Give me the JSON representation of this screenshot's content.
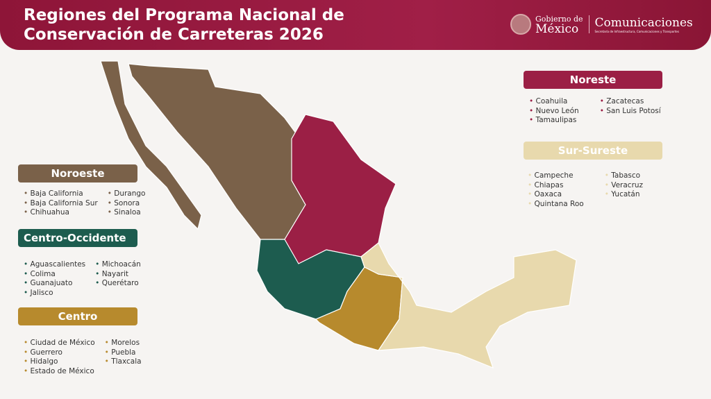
{
  "header": {
    "title_line1": "Regiones del Programa Nacional de",
    "title_line2": "Conservación de Carreteras 2026",
    "logo_gob_line1": "Gobierno de",
    "logo_gob_line2": "México",
    "logo_dept": "Comunicaciones",
    "logo_dept_sub": "Secretaría de Infraestructura, Comunicaciones y Transportes"
  },
  "regions": [
    {
      "name": "Noroeste",
      "color": "#7a6149",
      "states": [
        "Baja California",
        "Baja California Sur",
        "Chihuahua",
        "Durango",
        "Sonora",
        "Sinaloa"
      ]
    },
    {
      "name": "Centro-Occidente",
      "color": "#1d5c4f",
      "states": [
        "Aguascalientes",
        "Colima",
        "Guanajuato",
        "Jalisco",
        "Michoacán",
        "Nayarit",
        "Querétaro"
      ]
    },
    {
      "name": "Centro",
      "color": "#b78a2d",
      "states": [
        "Ciudad de México",
        "Guerrero",
        "Hidalgo",
        "Estado de México",
        "Morelos",
        "Puebla",
        "Tlaxcala"
      ]
    },
    {
      "name": "Noreste",
      "color": "#9b1f45",
      "states": [
        "Coahuila",
        "Nuevo León",
        "Tamaulipas",
        "Zacatecas",
        "San Luis Potosí"
      ]
    },
    {
      "name": "Sur-Sureste",
      "color": "#e8d9ad",
      "states": [
        "Campeche",
        "Chiapas",
        "Oaxaca",
        "Quintana Roo",
        "Tabasco",
        "Veracruz",
        "Yucatán"
      ]
    }
  ]
}
